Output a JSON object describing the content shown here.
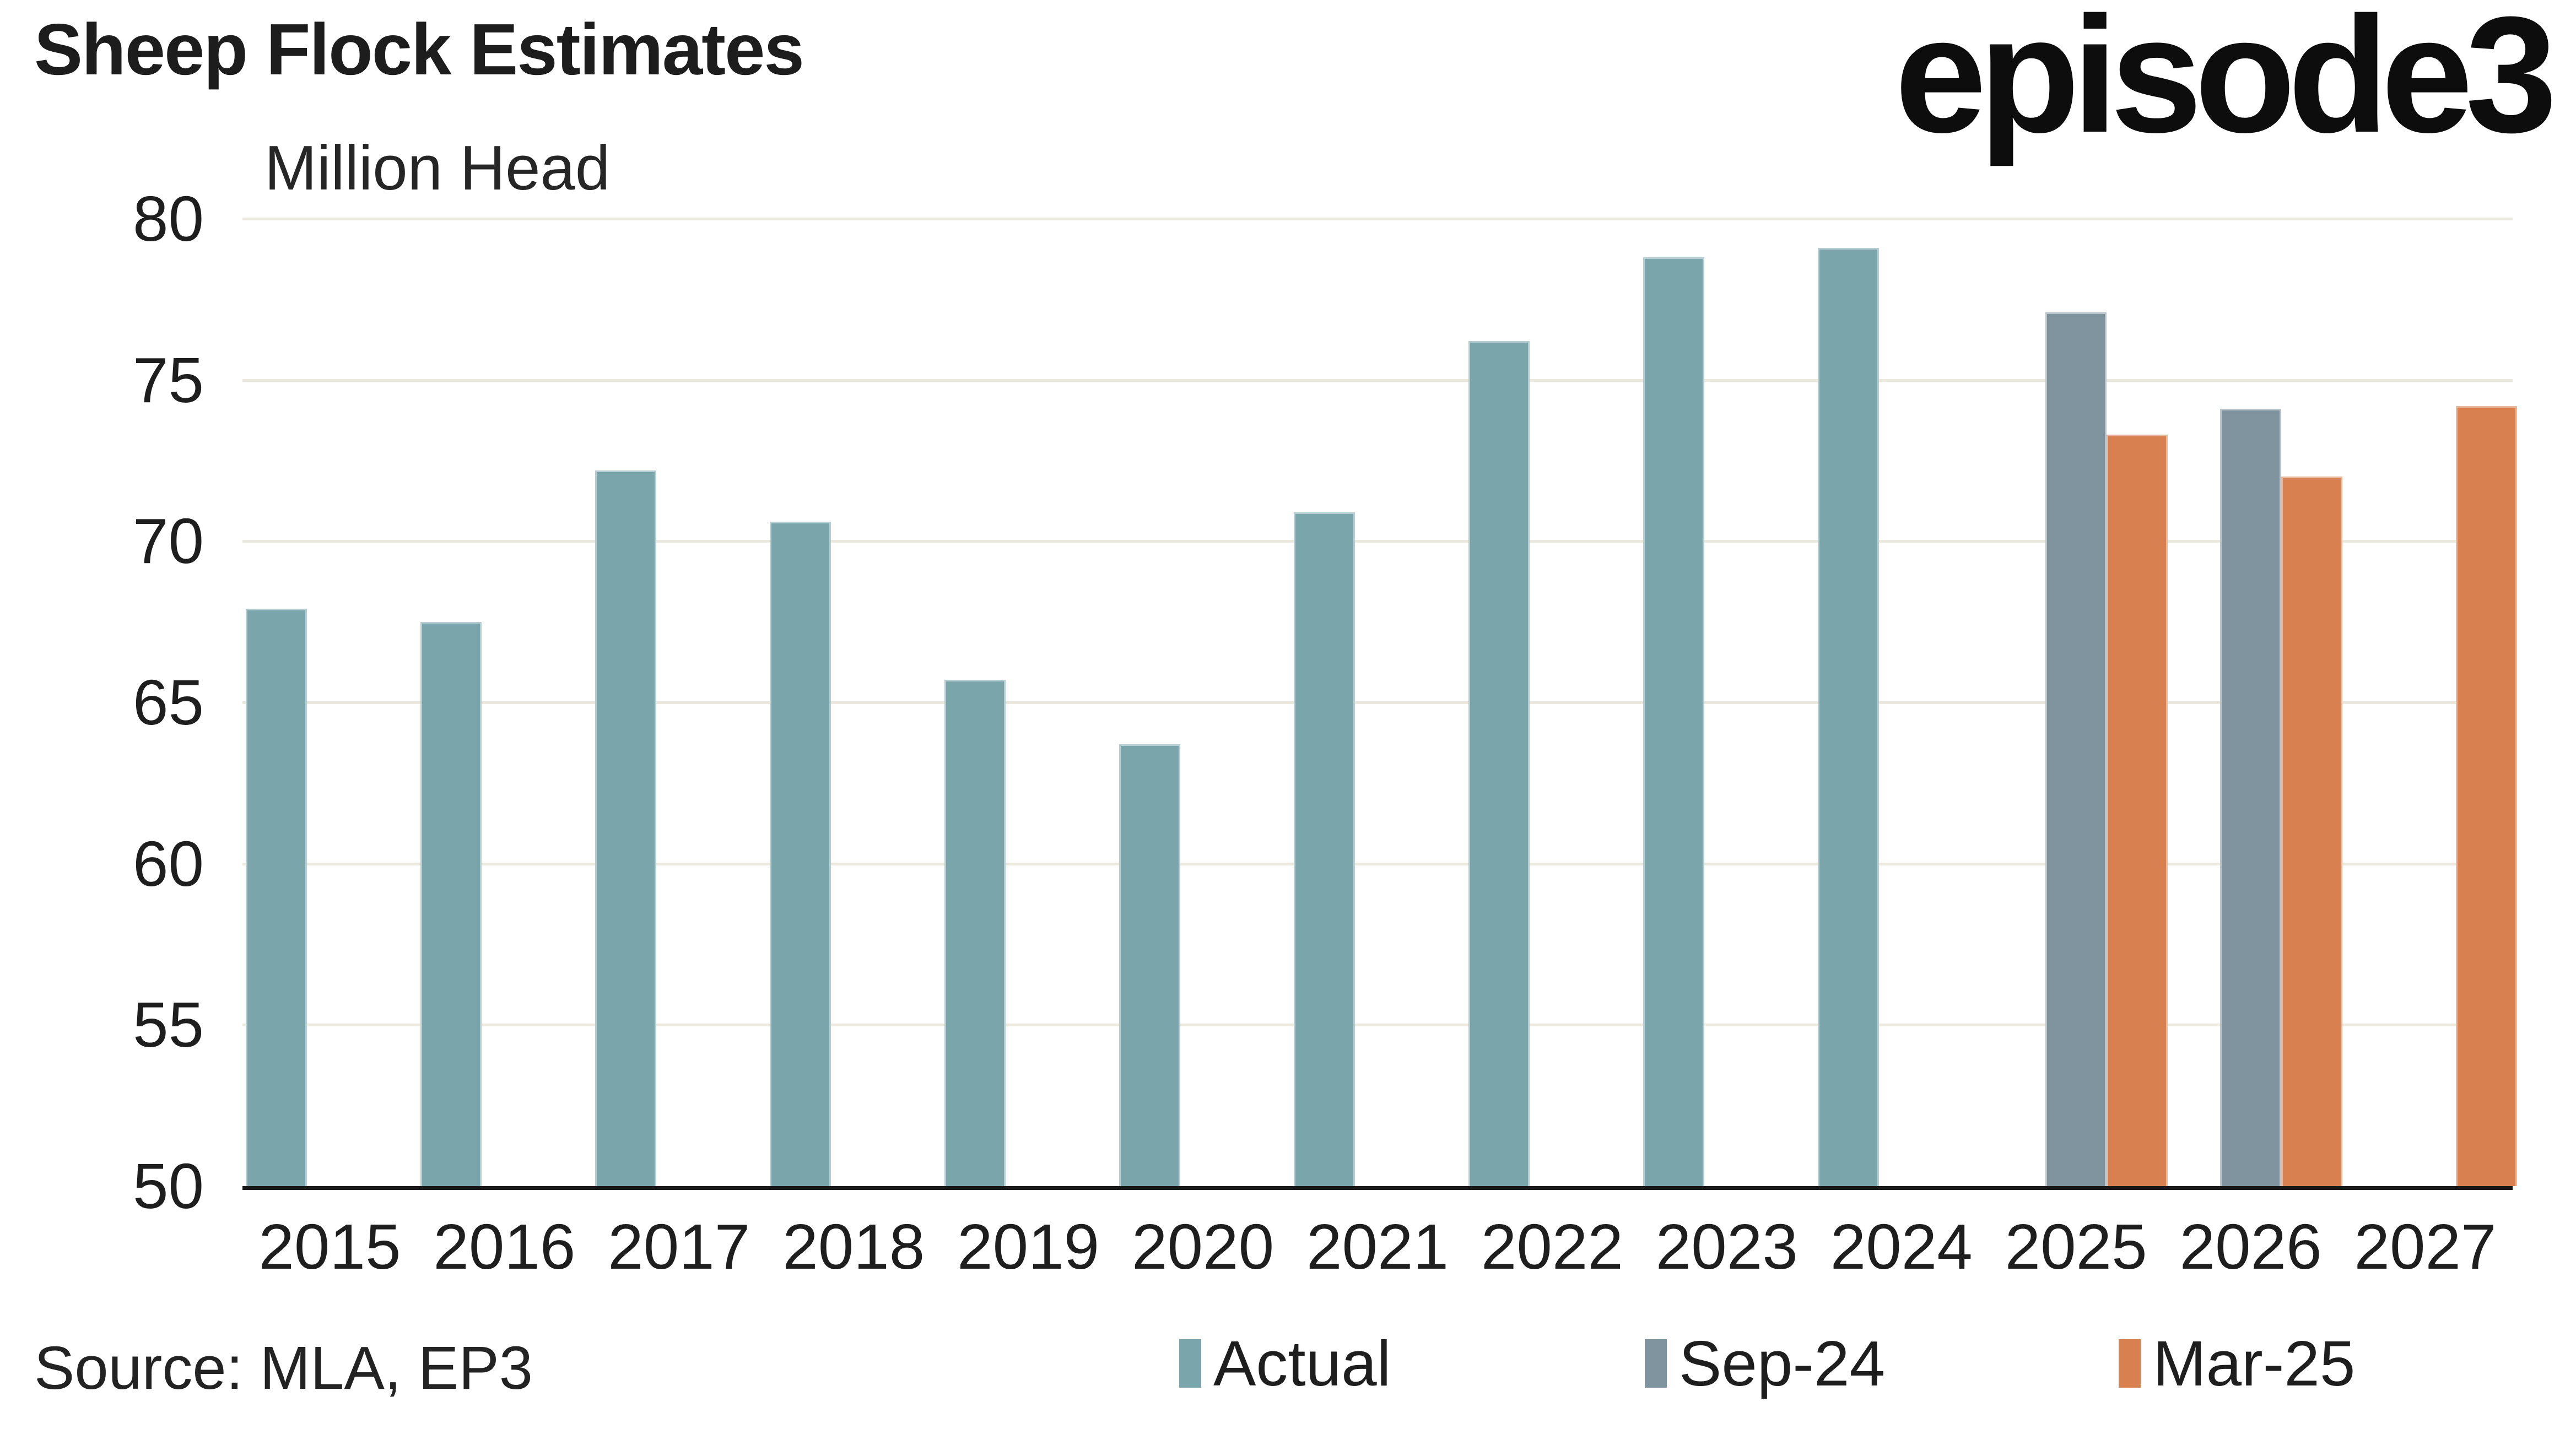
{
  "header": {
    "title": "Sheep Flock Estimates",
    "subtitle": "Million Head",
    "logo": "episode3"
  },
  "source": {
    "label": "Source: MLA, EP3"
  },
  "legend": [
    {
      "label": "Actual",
      "color": "#7aa5ab"
    },
    {
      "label": "Sep-24",
      "color": "#8094a0"
    },
    {
      "label": "Mar-25",
      "color": "#d8804f"
    }
  ],
  "colors": {
    "actual": "#7aa5ab",
    "sep24": "#8094a0",
    "mar25": "#d8804f",
    "gridline": "#ebe9dd",
    "axis_line": "#1a1a1a",
    "text": "#1e1e1e"
  },
  "chart_data": {
    "type": "bar",
    "title": "Sheep Flock Estimates",
    "ylabel": "Million Head",
    "xlabel": "",
    "ylim": [
      50,
      80
    ],
    "yticks": [
      50,
      55,
      60,
      65,
      70,
      75,
      80
    ],
    "grid": true,
    "legend_position": "bottom",
    "categories": [
      "2015",
      "2016",
      "2017",
      "2018",
      "2019",
      "2020",
      "2021",
      "2022",
      "2023",
      "2024",
      "2025",
      "2026",
      "2027"
    ],
    "series": [
      {
        "name": "Actual",
        "color": "#7aa5ab",
        "values": [
          67.9,
          67.5,
          72.2,
          70.6,
          65.7,
          63.7,
          70.9,
          76.2,
          78.8,
          79.1,
          null,
          null,
          null
        ]
      },
      {
        "name": "Sep-24",
        "color": "#8094a0",
        "values": [
          null,
          null,
          null,
          null,
          null,
          null,
          null,
          null,
          null,
          null,
          77.1,
          74.1,
          null
        ]
      },
      {
        "name": "Mar-25",
        "color": "#d8804f",
        "values": [
          null,
          null,
          null,
          null,
          null,
          null,
          null,
          null,
          null,
          null,
          73.3,
          72.0,
          74.2
        ]
      }
    ]
  }
}
